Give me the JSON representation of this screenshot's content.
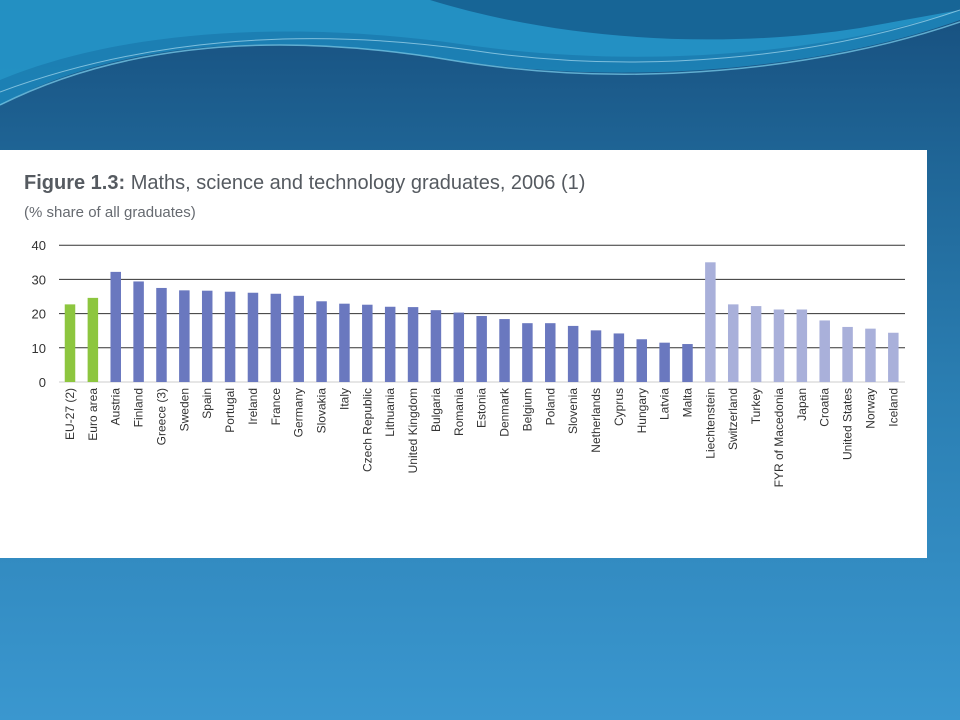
{
  "figure": {
    "title_lead": "Figure 1.3:",
    "title_rest": " Maths, science and technology graduates, 2006 (1)",
    "subtitle": "(% share of all graduates)"
  },
  "colors": {
    "eu_aggregate": "#8dc63f",
    "eu_member": "#6a78bf",
    "non_eu": "#a9b0da",
    "gridline": "#333333"
  },
  "chart_data": {
    "type": "bar",
    "title": "Maths, science and technology graduates, 2006 (1)",
    "subtitle": "(% share of all graduates)",
    "xlabel": "",
    "ylabel": "",
    "ylim": [
      0,
      40
    ],
    "yticks": [
      0,
      10,
      20,
      30,
      40
    ],
    "grid": true,
    "categories": [
      "EU-27 (2)",
      "Euro area",
      "Austria",
      "Finland",
      "Greece (3)",
      "Sweden",
      "Spain",
      "Portugal",
      "Ireland",
      "France",
      "Germany",
      "Slovakia",
      "Italy",
      "Czech Republic",
      "Lithuania",
      "United Kingdom",
      "Bulgaria",
      "Romania",
      "Estonia",
      "Denmark",
      "Belgium",
      "Poland",
      "Slovenia",
      "Netherlands",
      "Cyprus",
      "Hungary",
      "Latvia",
      "Malta",
      "Liechtenstein",
      "Switzerland",
      "Turkey",
      "FYR of Macedonia",
      "Japan",
      "Croatia",
      "United States",
      "Norway",
      "Iceland"
    ],
    "values": [
      22.7,
      24.6,
      32.2,
      29.4,
      27.5,
      26.8,
      26.7,
      26.4,
      26.1,
      25.8,
      25.2,
      23.6,
      22.9,
      22.6,
      22.0,
      21.9,
      21.0,
      20.3,
      19.3,
      18.4,
      17.2,
      17.2,
      16.4,
      15.1,
      14.2,
      12.5,
      11.5,
      11.1,
      35.0,
      22.7,
      22.2,
      21.2,
      21.2,
      18.0,
      16.1,
      15.6,
      14.4
    ],
    "groups": [
      "eu_aggregate",
      "eu_aggregate",
      "eu_member",
      "eu_member",
      "eu_member",
      "eu_member",
      "eu_member",
      "eu_member",
      "eu_member",
      "eu_member",
      "eu_member",
      "eu_member",
      "eu_member",
      "eu_member",
      "eu_member",
      "eu_member",
      "eu_member",
      "eu_member",
      "eu_member",
      "eu_member",
      "eu_member",
      "eu_member",
      "eu_member",
      "eu_member",
      "eu_member",
      "eu_member",
      "eu_member",
      "eu_member",
      "non_eu",
      "non_eu",
      "non_eu",
      "non_eu",
      "non_eu",
      "non_eu",
      "non_eu",
      "non_eu",
      "non_eu"
    ]
  }
}
